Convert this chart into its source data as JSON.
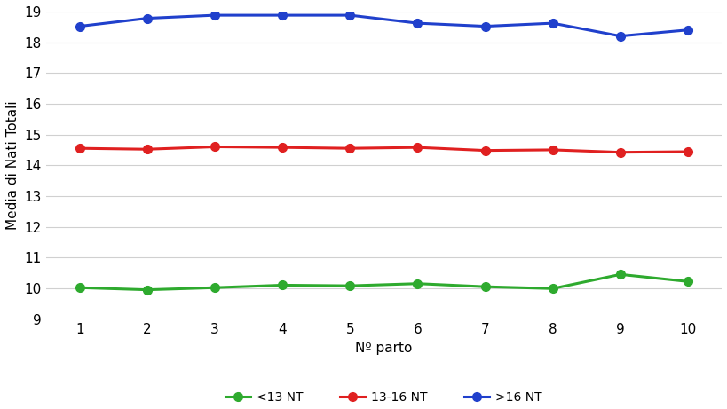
{
  "x": [
    1,
    2,
    3,
    4,
    5,
    6,
    7,
    8,
    9,
    10
  ],
  "green_values": [
    10.02,
    9.95,
    10.02,
    10.1,
    10.08,
    10.15,
    10.05,
    9.99,
    10.45,
    10.22
  ],
  "red_values": [
    14.55,
    14.52,
    14.6,
    14.58,
    14.55,
    14.58,
    14.48,
    14.5,
    14.42,
    14.44
  ],
  "blue_values": [
    18.52,
    18.78,
    18.88,
    18.88,
    18.88,
    18.62,
    18.52,
    18.62,
    18.2,
    18.4
  ],
  "green_color": "#2EAA2E",
  "red_color": "#E02020",
  "blue_color": "#2040CC",
  "xlabel": "Nº parto",
  "ylabel": "Media di Nati Totali",
  "ylim_min": 9,
  "ylim_max": 19,
  "yticks": [
    9,
    10,
    11,
    12,
    13,
    14,
    15,
    16,
    17,
    18,
    19
  ],
  "xticks": [
    1,
    2,
    3,
    4,
    5,
    6,
    7,
    8,
    9,
    10
  ],
  "legend_labels": [
    "<13 NT",
    "13-16 NT",
    ">16 NT"
  ],
  "marker": "o",
  "linewidth": 2.2,
  "markersize": 7,
  "background_color": "#ffffff",
  "grid_color": "#d0d0d0"
}
